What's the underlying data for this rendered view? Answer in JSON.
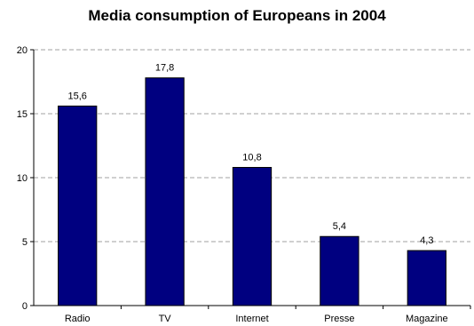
{
  "chart_data": {
    "type": "bar",
    "title": "Media consumption of Europeans in 2004",
    "xlabel": "",
    "ylabel": "",
    "categories": [
      "Radio",
      "TV",
      "Internet",
      "Presse",
      "Magazine"
    ],
    "values": [
      15.6,
      17.8,
      10.8,
      5.4,
      4.3
    ],
    "data_labels": [
      "15,6",
      "17,8",
      "10,8",
      "5,4",
      "4,3"
    ],
    "ylim": [
      0,
      20
    ],
    "yticks": [
      0,
      5,
      10,
      15,
      20
    ],
    "grid": true,
    "legend": "none",
    "colors": {
      "bar_fill": "#000080",
      "bar_stroke": "#000000",
      "grid": "#a0a0a0",
      "axis": "#000000"
    }
  }
}
